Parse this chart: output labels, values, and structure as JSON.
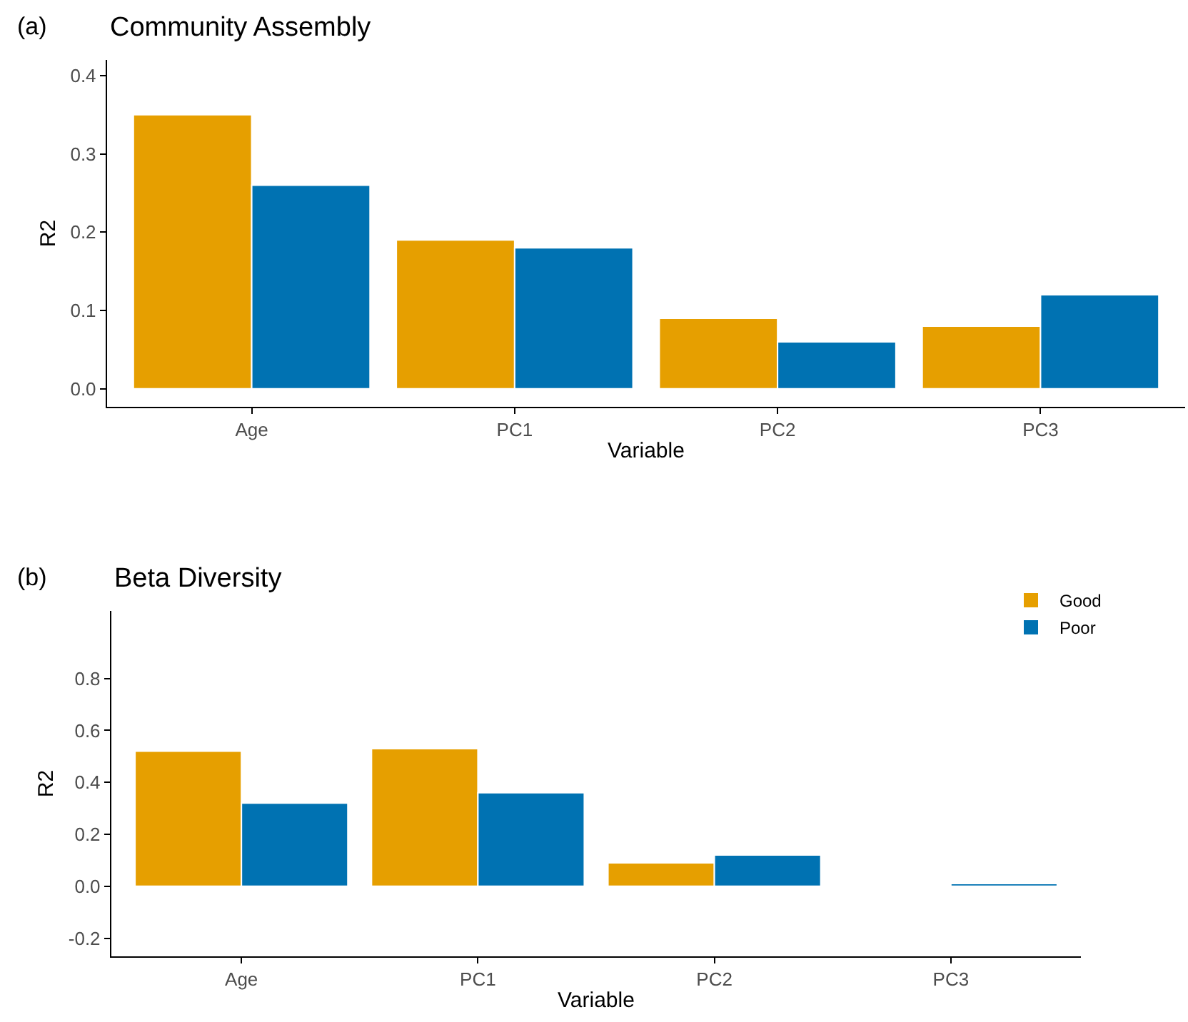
{
  "chart_data": [
    {
      "type": "bar",
      "title": "Community Assembly",
      "xlabel": "Variable",
      "ylabel": "R2",
      "annotations": [
        "(a)"
      ],
      "categories": [
        "Age",
        "PC1",
        "PC2",
        "PC3"
      ],
      "series": [
        {
          "color": "#e69f00",
          "values": [
            0.35,
            0.19,
            0.09,
            0.08
          ]
        },
        {
          "color": "#0072b2",
          "values": [
            0.26,
            0.18,
            0.06,
            0.12
          ]
        }
      ],
      "ylim": [
        -0.023,
        0.42
      ],
      "yticks": [
        {
          "value": 0,
          "label": "0.0"
        },
        0.1,
        0.2,
        0.3,
        0.4
      ],
      "legend": false
    },
    {
      "type": "bar",
      "title": "Beta Diversity",
      "xlabel": "Variable",
      "ylabel": "R2",
      "annotations": [
        "(b)"
      ],
      "categories": [
        "Age",
        "PC1",
        "PC2",
        "PC3"
      ],
      "series": [
        {
          "name": "Good",
          "color": "#e69f00",
          "values": [
            0.52,
            0.53,
            0.09,
            null
          ]
        },
        {
          "name": "Poor",
          "color": "#0072b2",
          "values": [
            0.32,
            0.36,
            0.12,
            0.01
          ]
        }
      ],
      "ylim": [
        -0.27,
        1.06
      ],
      "yticks": [
        -0.2,
        {
          "value": 0,
          "label": "0.0"
        },
        0.2,
        0.4,
        0.6,
        0.8
      ],
      "legend": "top right"
    }
  ]
}
